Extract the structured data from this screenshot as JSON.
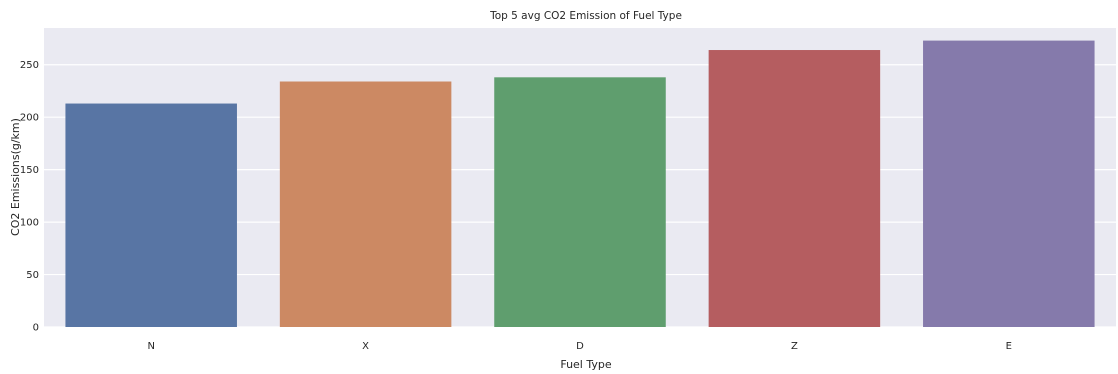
{
  "chart_data": {
    "type": "bar",
    "title": "Top 5 avg CO2 Emission of Fuel Type",
    "xlabel": "Fuel Type",
    "ylabel": "CO2 Emissions(g/km)",
    "categories": [
      "N",
      "X",
      "D",
      "Z",
      "E"
    ],
    "values": [
      213,
      234,
      238,
      264,
      273
    ],
    "colors": [
      "#5875a4",
      "#cc8963",
      "#5f9e6e",
      "#b55d60",
      "#857aab"
    ],
    "ylim": [
      0,
      285
    ],
    "yticks": [
      0,
      50,
      100,
      150,
      200,
      250
    ],
    "grid": true,
    "background": "#eaeaf2"
  }
}
